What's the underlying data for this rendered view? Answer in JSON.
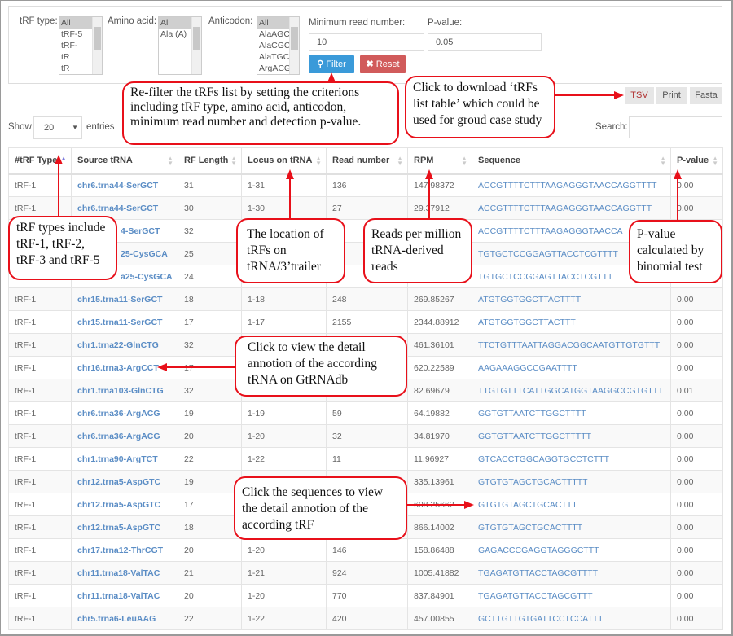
{
  "filters": {
    "trf_type": {
      "label": "tRF type:",
      "options": [
        "All",
        "tRF-5",
        "tRF-",
        "tR",
        "tR"
      ]
    },
    "amino_acid": {
      "label": "Amino acid:",
      "options": [
        "All",
        "Ala (A)"
      ]
    },
    "anticodon": {
      "label": "Anticodon:",
      "options": [
        "All",
        "AlaAGC",
        "AlaCGC",
        "AlaTGC",
        "ArgACG"
      ]
    },
    "min_read": {
      "label": "Minimum read number:",
      "value": "10"
    },
    "pvalue": {
      "label": "P-value:",
      "value": "0.05"
    },
    "filter_label": "Filter",
    "reset_label": "Reset"
  },
  "export": {
    "tsv": "TSV",
    "print": "Print",
    "fasta": "Fasta"
  },
  "length_control": {
    "show": "Show",
    "value": "20",
    "entries": "entries"
  },
  "search": {
    "label": "Search:",
    "value": ""
  },
  "colors": {
    "filter_button": "#3a9ad9",
    "reset_button": "#d15b5b",
    "link": "#5b8dc5",
    "callout_border": "#e8101a"
  },
  "table": {
    "columns": [
      "#tRF Type",
      "Source tRNA",
      "RF Length",
      "Locus on tRNA",
      "Read number",
      "RPM",
      "Sequence",
      "P-value"
    ],
    "sorted_column": "#tRF Type",
    "rows": [
      [
        "tRF-1",
        "chr6.trna44-SerGCT",
        "31",
        "1-31",
        "136",
        "147.98372",
        "ACCGTTTTCTTTAAGAGGGTAACCAGGTTTT",
        "0.00"
      ],
      [
        "tRF-1",
        "chr6.trna44-SerGCT",
        "30",
        "1-30",
        "27",
        "29.37912",
        "ACCGTTTTCTTTAAGAGGGTAACCAGGTTT",
        "0.00"
      ],
      [
        "",
        "4-SerGCT",
        "32",
        "",
        "",
        "",
        "ACCGTTTTCTTTAAGAGGGTAACCA",
        ""
      ],
      [
        "",
        "25-CysGCA",
        "25",
        "",
        "",
        "",
        "TGTGCTCCGGAGTTACCTCGTTTT",
        ""
      ],
      [
        "",
        "a25-CysGCA",
        "24",
        "",
        "",
        "",
        "TGTGCTCCGGAGTTACCTCGTTT",
        ""
      ],
      [
        "tRF-1",
        "chr15.trna11-SerGCT",
        "18",
        "1-18",
        "248",
        "269.85267",
        "ATGTGGTGGCTTACTTTT",
        "0.00"
      ],
      [
        "tRF-1",
        "chr15.trna11-SerGCT",
        "17",
        "1-17",
        "2155",
        "2344.88912",
        "ATGTGGTGGCTTACTTT",
        "0.00"
      ],
      [
        "tRF-1",
        "chr1.trna22-GlnCTG",
        "32",
        "",
        "",
        "461.36101",
        "TTCTGTTTAATTAGGACGGCAATGTTGTGTTT",
        "0.00"
      ],
      [
        "tRF-1",
        "chr16.trna3-ArgCCT",
        "17",
        "",
        "",
        "620.22589",
        "AAGAAAGGCCGAATTTT",
        "0.00"
      ],
      [
        "tRF-1",
        "chr1.trna103-GlnCTG",
        "32",
        "",
        "",
        "82.69679",
        "TTGTGTTTCATTGGCATGGTAAGGCCGTGTTT",
        "0.01"
      ],
      [
        "tRF-1",
        "chr6.trna36-ArgACG",
        "19",
        "1-19",
        "59",
        "64.19882",
        "GGTGTTAATCTTGGCTTTT",
        "0.00"
      ],
      [
        "tRF-1",
        "chr6.trna36-ArgACG",
        "20",
        "1-20",
        "32",
        "34.81970",
        "GGTGTTAATCTTGGCTTTTT",
        "0.00"
      ],
      [
        "tRF-1",
        "chr1.trna90-ArgTCT",
        "22",
        "1-22",
        "11",
        "11.96927",
        "GTCACCTGGCAGGTGCCTCTTT",
        "0.00"
      ],
      [
        "tRF-1",
        "chr12.trna5-AspGTC",
        "19",
        "",
        "",
        "335.13961",
        "GTGTGTAGCTGCACTTTTT",
        "0.00"
      ],
      [
        "tRF-1",
        "chr12.trna5-AspGTC",
        "17",
        "",
        "",
        "608.25662",
        "GTGTGTAGCTGCACTTT",
        "0.00"
      ],
      [
        "tRF-1",
        "chr12.trna5-AspGTC",
        "18",
        "",
        "",
        "866.14002",
        "GTGTGTAGCTGCACTTTT",
        "0.00"
      ],
      [
        "tRF-1",
        "chr17.trna12-ThrCGT",
        "20",
        "1-20",
        "146",
        "158.86488",
        "GAGACCCGAGGTAGGGCTTT",
        "0.00"
      ],
      [
        "tRF-1",
        "chr11.trna18-ValTAC",
        "21",
        "1-21",
        "924",
        "1005.41882",
        "TGAGATGTTACCTAGCGTTTT",
        "0.00"
      ],
      [
        "tRF-1",
        "chr11.trna18-ValTAC",
        "20",
        "1-20",
        "770",
        "837.84901",
        "TGAGATGTTACCTAGCGTTT",
        "0.00"
      ],
      [
        "tRF-1",
        "chr5.trna6-LeuAAG",
        "22",
        "1-22",
        "420",
        "457.00855",
        "GCTTGTTGTGATTCCTCCATTT",
        "0.00"
      ]
    ]
  },
  "annotations": {
    "refilter": "Re-filter the tRFs list by setting the criterions including tRF type, amino acid, anticodon, minimum read number and detection p-value.",
    "download": "Click to download ‘tRFs list table’ which could be used for groud case study",
    "trf_types": "tRF types include tRF-1, tRF-2, tRF-3 and tRF-5",
    "location": "The location of tRFs on tRNA/3’trailer",
    "rpm": "Reads per million tRNA-derived reads",
    "pvalue": "P-value calculated by binomial test",
    "gtrnadb": "Click to view the detail annotion of  the according tRNA on GtRNAdb",
    "sequence": "Click the sequences to view the detail annotion of the according tRF"
  }
}
